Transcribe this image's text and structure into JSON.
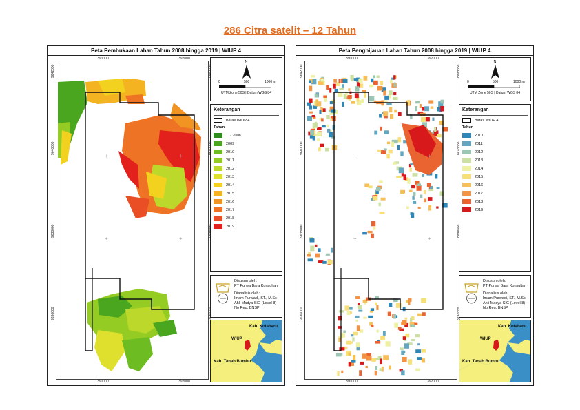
{
  "page": {
    "title": "286 Citra satelit – 12 Tahun"
  },
  "left_panel": {
    "title": "Peta Pembukaan Lahan Tahun 2008 hingga 2019 | WIUP 4",
    "coords": {
      "top_x1": "390000",
      "top_x2": "392000",
      "bottom_x1": "390000",
      "bottom_x2": "392000",
      "y_top": "9642000",
      "y_mid": "9640000",
      "y_low": "9638000",
      "y_bot": "9636000"
    },
    "north": {
      "symbol": "N",
      "scale_0": "0",
      "scale_500": "500",
      "scale_1000": "1000 m",
      "projection": "UTM Zone 50S | Datum WGS 84"
    },
    "legend": {
      "title": "Keterangan",
      "boundary": "Batas WIUP 4",
      "subtitle": "Tahun",
      "items": [
        {
          "label": "... - 2008",
          "color": "#2e8b1e"
        },
        {
          "label": "2009",
          "color": "#4aa51f"
        },
        {
          "label": "2010",
          "color": "#6dbd22"
        },
        {
          "label": "2011",
          "color": "#95cc23"
        },
        {
          "label": "2012",
          "color": "#bcd82a"
        },
        {
          "label": "2013",
          "color": "#dfe02d"
        },
        {
          "label": "2014",
          "color": "#f2d21f"
        },
        {
          "label": "2015",
          "color": "#f4b320"
        },
        {
          "label": "2016",
          "color": "#f29422"
        },
        {
          "label": "2017",
          "color": "#ee7324"
        },
        {
          "label": "2018",
          "color": "#e94e24"
        },
        {
          "label": "2019",
          "color": "#e2211c"
        }
      ]
    },
    "credits": {
      "line1": "Disusun oleh:",
      "line2": "PT Purwa Bara Konsultan",
      "line3": "Dianalisis oleh:",
      "line4": "Imam Purwadi, ST., M.Sc",
      "line5": "Ahli Madya SIG (Level 8)",
      "line6": "No Reg. BNSP"
    },
    "inset": {
      "label1": "Kab. Kotabaru",
      "label2": "WIUP",
      "label3": "Kab. Tanah Bumbu"
    }
  },
  "right_panel": {
    "title": "Peta Penghijauan Lahan Tahun 2008 hingga 2019 | WIUP 4",
    "coords": {
      "top_x1": "390000",
      "top_x2": "392000",
      "bottom_x1": "390000",
      "bottom_x2": "392000",
      "y_top": "9642000",
      "y_mid": "9640000",
      "y_low": "9638000",
      "y_bot": "9636000"
    },
    "north": {
      "symbol": "N",
      "scale_0": "0",
      "scale_500": "500",
      "scale_1000": "1000 m",
      "projection": "UTM Zone 50S | Datum WGS 84"
    },
    "legend": {
      "title": "Keterangan",
      "boundary": "Batas WIUP 4",
      "subtitle": "Tahun",
      "items": [
        {
          "label": "2010",
          "color": "#2f87b8"
        },
        {
          "label": "2011",
          "color": "#63a6c0"
        },
        {
          "label": "2012",
          "color": "#9cc6b4"
        },
        {
          "label": "2013",
          "color": "#cce0a4"
        },
        {
          "label": "2014",
          "color": "#eef0a2"
        },
        {
          "label": "2015",
          "color": "#f7e07a"
        },
        {
          "label": "2016",
          "color": "#f6bf58"
        },
        {
          "label": "2017",
          "color": "#f29443"
        },
        {
          "label": "2018",
          "color": "#ea6431"
        },
        {
          "label": "2019",
          "color": "#d7191c"
        }
      ]
    },
    "credits": {
      "line1": "Disusun oleh:",
      "line2": "PT Purwa Bara Konsultan",
      "line3": "Dianalisis oleh:",
      "line4": "Imam Purwadi, ST., M.Sc",
      "line5": "Ahli Madya SIG (Level 8)",
      "line6": "No Reg. BNSP"
    },
    "inset": {
      "label1": "Kab. Kotabaru",
      "label2": "WIUP",
      "label3": "Kab. Tanah Bumbu"
    }
  },
  "colors": {
    "title": "#e06a1f",
    "sea": "#3a8fc6",
    "land": "#f5ef7e",
    "wiup": "#d7191c"
  }
}
